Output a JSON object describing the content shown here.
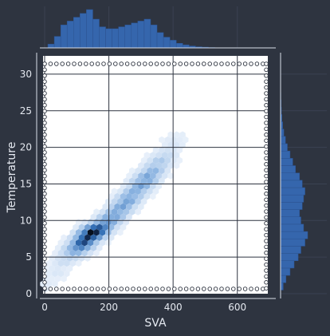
{
  "colors": {
    "background": "#2e3440",
    "plot_background": "#ffffff",
    "grid": "#2e3440",
    "marginal_bar": "#3566ad",
    "marginal_edge": "#2c5391",
    "hex_low": "#eef4fc",
    "hex_high": "#000000",
    "tick_text": "#e5e9f0",
    "axis_line": "#d8dee9",
    "dot_border": "#2e3440"
  },
  "chart_data": {
    "type": "hexbin-jointplot",
    "xlabel": "SVA",
    "ylabel": "Temperature",
    "xlim": [
      -5,
      695
    ],
    "ylim": [
      0,
      32.5
    ],
    "xticks": [
      0,
      200,
      400,
      600
    ],
    "yticks": [
      0,
      5,
      10,
      15,
      20,
      25,
      30
    ],
    "grid": true,
    "hex_density_ridge": {
      "description": "density of SVA vs Temperature observations along a ridge; density 0-1",
      "points": [
        {
          "x": 10,
          "y": 1.5,
          "density": 0.05
        },
        {
          "x": 40,
          "y": 3.0,
          "density": 0.08
        },
        {
          "x": 60,
          "y": 4.5,
          "density": 0.14
        },
        {
          "x": 80,
          "y": 5.5,
          "density": 0.25
        },
        {
          "x": 95,
          "y": 6.0,
          "density": 0.45
        },
        {
          "x": 110,
          "y": 6.5,
          "density": 0.6
        },
        {
          "x": 120,
          "y": 7.0,
          "density": 0.8
        },
        {
          "x": 135,
          "y": 7.8,
          "density": 0.9
        },
        {
          "x": 150,
          "y": 8.3,
          "density": 1.0
        },
        {
          "x": 165,
          "y": 8.7,
          "density": 0.85
        },
        {
          "x": 180,
          "y": 9.2,
          "density": 0.6
        },
        {
          "x": 200,
          "y": 10.0,
          "density": 0.5
        },
        {
          "x": 220,
          "y": 10.8,
          "density": 0.45
        },
        {
          "x": 240,
          "y": 11.8,
          "density": 0.45
        },
        {
          "x": 260,
          "y": 12.8,
          "density": 0.45
        },
        {
          "x": 280,
          "y": 13.8,
          "density": 0.4
        },
        {
          "x": 300,
          "y": 14.8,
          "density": 0.45
        },
        {
          "x": 320,
          "y": 15.8,
          "density": 0.45
        },
        {
          "x": 340,
          "y": 16.8,
          "density": 0.35
        },
        {
          "x": 360,
          "y": 18.0,
          "density": 0.25
        },
        {
          "x": 380,
          "y": 19.0,
          "density": 0.15
        },
        {
          "x": 400,
          "y": 20.5,
          "density": 0.08
        },
        {
          "x": 420,
          "y": 21.5,
          "density": 0.04
        }
      ]
    },
    "marginal_x": {
      "description": "histogram of SVA, relative heights 0-1",
      "bins": [
        {
          "x": 20,
          "h": 0.1
        },
        {
          "x": 40,
          "h": 0.3
        },
        {
          "x": 60,
          "h": 0.6
        },
        {
          "x": 80,
          "h": 0.7
        },
        {
          "x": 100,
          "h": 0.8
        },
        {
          "x": 120,
          "h": 0.9
        },
        {
          "x": 140,
          "h": 1.0
        },
        {
          "x": 160,
          "h": 0.75
        },
        {
          "x": 180,
          "h": 0.55
        },
        {
          "x": 200,
          "h": 0.5
        },
        {
          "x": 220,
          "h": 0.5
        },
        {
          "x": 240,
          "h": 0.55
        },
        {
          "x": 260,
          "h": 0.6
        },
        {
          "x": 280,
          "h": 0.65
        },
        {
          "x": 300,
          "h": 0.7
        },
        {
          "x": 320,
          "h": 0.75
        },
        {
          "x": 340,
          "h": 0.6
        },
        {
          "x": 360,
          "h": 0.4
        },
        {
          "x": 380,
          "h": 0.28
        },
        {
          "x": 400,
          "h": 0.2
        },
        {
          "x": 420,
          "h": 0.12
        },
        {
          "x": 440,
          "h": 0.08
        },
        {
          "x": 460,
          "h": 0.05
        },
        {
          "x": 480,
          "h": 0.03
        },
        {
          "x": 500,
          "h": 0.02
        },
        {
          "x": 520,
          "h": 0.01
        }
      ]
    },
    "marginal_y": {
      "description": "histogram of Temperature, relative widths 0-1",
      "bins": [
        {
          "y": 1,
          "w": 0.1
        },
        {
          "y": 2,
          "w": 0.2
        },
        {
          "y": 3,
          "w": 0.35
        },
        {
          "y": 4,
          "w": 0.5
        },
        {
          "y": 5,
          "w": 0.65
        },
        {
          "y": 6,
          "w": 0.75
        },
        {
          "y": 7,
          "w": 0.9
        },
        {
          "y": 8,
          "w": 1.0
        },
        {
          "y": 9,
          "w": 0.85
        },
        {
          "y": 10,
          "w": 0.75
        },
        {
          "y": 11,
          "w": 0.7
        },
        {
          "y": 12,
          "w": 0.8
        },
        {
          "y": 13,
          "w": 0.85
        },
        {
          "y": 14,
          "w": 0.9
        },
        {
          "y": 15,
          "w": 0.8
        },
        {
          "y": 16,
          "w": 0.7
        },
        {
          "y": 17,
          "w": 0.55
        },
        {
          "y": 18,
          "w": 0.45
        },
        {
          "y": 19,
          "w": 0.35
        },
        {
          "y": 20,
          "w": 0.25
        },
        {
          "y": 21,
          "w": 0.18
        },
        {
          "y": 22,
          "w": 0.12
        },
        {
          "y": 23,
          "w": 0.08
        },
        {
          "y": 24,
          "w": 0.05
        },
        {
          "y": 25,
          "w": 0.03
        },
        {
          "y": 26,
          "w": 0.02
        },
        {
          "y": 27,
          "w": 0.01
        }
      ]
    }
  }
}
